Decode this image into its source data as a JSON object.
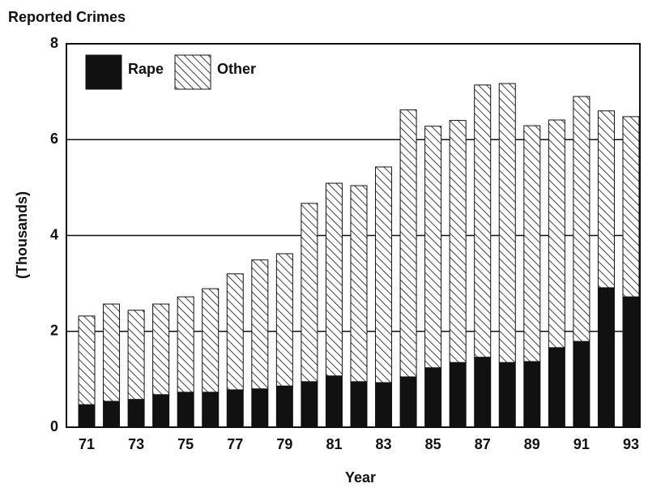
{
  "chart_data": {
    "type": "stacked_bar",
    "title": "Reported Crimes",
    "x_label": "Year",
    "y_label": "(Thousands)",
    "categories": [
      "71",
      null,
      "73",
      null,
      "75",
      null,
      "77",
      null,
      "79",
      null,
      "81",
      null,
      "83",
      null,
      "85",
      null,
      "87",
      null,
      "89",
      null,
      "91",
      null,
      "93"
    ],
    "series": [
      {
        "name": "Rape",
        "color": "#111111",
        "hatch": false,
        "values": [
          0.47,
          0.54,
          0.58,
          0.68,
          0.73,
          0.73,
          0.78,
          0.8,
          0.86,
          0.95,
          1.07,
          0.95,
          0.93,
          1.05,
          1.24,
          1.35,
          1.46,
          1.35,
          1.37,
          1.66,
          1.79,
          2.91,
          2.72
        ]
      },
      {
        "name": "Other",
        "color": "#ffffff",
        "hatch": true,
        "values": [
          1.85,
          2.03,
          1.86,
          1.89,
          1.99,
          2.16,
          2.42,
          2.69,
          2.76,
          3.72,
          4.02,
          4.09,
          4.5,
          5.57,
          5.04,
          5.05,
          5.68,
          5.82,
          4.92,
          4.75,
          5.11,
          3.69,
          3.76
        ]
      }
    ],
    "ylim": [
      0,
      8
    ],
    "yticks": [
      0,
      2,
      4,
      6,
      8
    ],
    "grid": true,
    "legend": "upper left"
  }
}
